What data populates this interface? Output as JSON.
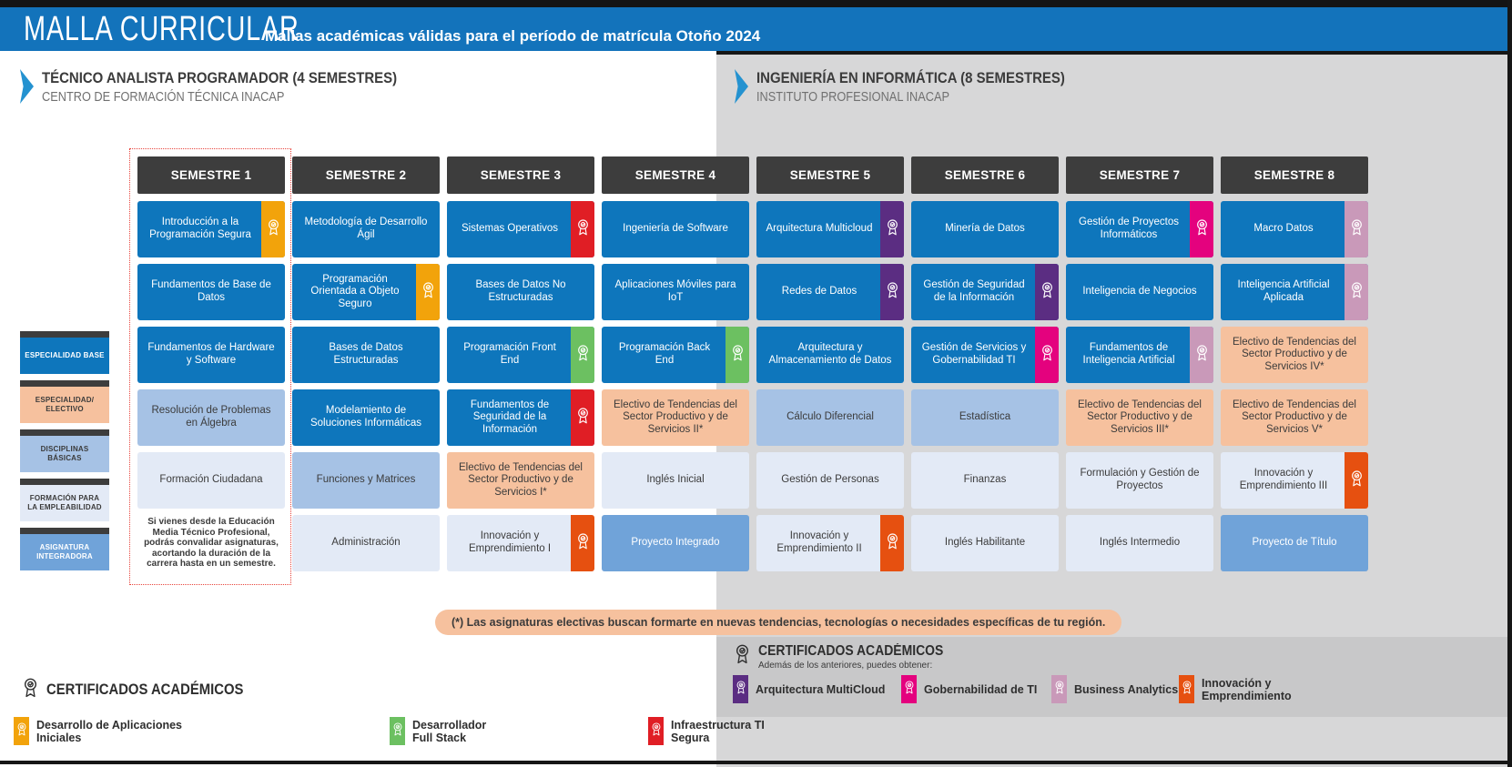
{
  "header": {
    "title": "MALLA CURRICULAR",
    "subtitle": "Mallas académicas válidas para el período de matrícula Otoño 2024"
  },
  "programs": [
    {
      "title": "TÉCNICO ANALISTA PROGRAMADOR (4 SEMESTRES)",
      "subtitle": "CENTRO DE FORMACIÓN TÉCNICA INACAP"
    },
    {
      "title": "INGENIERÍA EN INFORMÁTICA (8 SEMESTRES)",
      "subtitle": "INSTITUTO PROFESIONAL INACAP"
    }
  ],
  "legend": [
    {
      "label": "ESPECIALIDAD BASE",
      "category": "especialidad"
    },
    {
      "label": "ESPECIALIDAD/ ELECTIVO",
      "category": "electivo"
    },
    {
      "label": "DISCIPLINAS BÁSICAS",
      "category": "disciplinas"
    },
    {
      "label": "FORMACIÓN PARA LA EMPLEABILIDAD",
      "category": "empleabilidad"
    },
    {
      "label": "ASIGNATURA INTEGRADORA",
      "category": "integradora"
    }
  ],
  "semesters": [
    {
      "name": "SEMESTRE 1",
      "highlight": true,
      "courses": [
        {
          "name": "Introducción a la Programación Segura",
          "category": "especialidad",
          "badge": "orange"
        },
        {
          "name": "Fundamentos de Base de Datos",
          "category": "especialidad"
        },
        {
          "name": "Fundamentos de Hardware y Software",
          "category": "especialidad"
        },
        {
          "name": "Resolución de Problemas en Álgebra",
          "category": "disciplinas"
        },
        {
          "name": "Formación Ciudadana",
          "category": "empleabilidad"
        }
      ],
      "note": "Si vienes desde la Educación Media Técnico Profesional, podrás convalidar asignaturas, acortando la duración de la carrera hasta en un semestre."
    },
    {
      "name": "SEMESTRE 2",
      "courses": [
        {
          "name": "Metodología de Desarrollo Ágil",
          "category": "especialidad"
        },
        {
          "name": "Programación Orientada a Objeto Seguro",
          "category": "especialidad",
          "badge": "orange"
        },
        {
          "name": "Bases de Datos Estructuradas",
          "category": "especialidad"
        },
        {
          "name": "Modelamiento de Soluciones Informáticas",
          "category": "especialidad"
        },
        {
          "name": "Funciones y Matrices",
          "category": "disciplinas"
        },
        {
          "name": "Administración",
          "category": "empleabilidad"
        }
      ]
    },
    {
      "name": "SEMESTRE 3",
      "courses": [
        {
          "name": "Sistemas Operativos",
          "category": "especialidad",
          "badge": "red"
        },
        {
          "name": "Bases de Datos No Estructuradas",
          "category": "especialidad"
        },
        {
          "name": "Programación Front End",
          "category": "especialidad",
          "badge": "green"
        },
        {
          "name": "Fundamentos de Seguridad de la Información",
          "category": "especialidad",
          "badge": "red"
        },
        {
          "name": "Electivo de Tendencias del Sector Productivo y de Servicios I*",
          "category": "electivo"
        },
        {
          "name": "Innovación y Emprendimiento I",
          "category": "empleabilidad",
          "badge": "orangered"
        }
      ]
    },
    {
      "name": "SEMESTRE 4",
      "courses": [
        {
          "name": "Ingeniería de Software",
          "category": "especialidad"
        },
        {
          "name": "Aplicaciones Móviles para IoT",
          "category": "especialidad"
        },
        {
          "name": "Programación Back End",
          "category": "especialidad",
          "badge": "green"
        },
        {
          "name": "Electivo de Tendencias del Sector Productivo y de Servicios II*",
          "category": "electivo"
        },
        {
          "name": "Inglés Inicial",
          "category": "empleabilidad"
        },
        {
          "name": "Proyecto Integrado",
          "category": "integradora"
        }
      ]
    },
    {
      "name": "SEMESTRE 5",
      "courses": [
        {
          "name": "Arquitectura Multicloud",
          "category": "especialidad",
          "badge": "purple"
        },
        {
          "name": "Redes de Datos",
          "category": "especialidad",
          "badge": "purple"
        },
        {
          "name": "Arquitectura y Almacenamiento de Datos",
          "category": "especialidad"
        },
        {
          "name": "Cálculo Diferencial",
          "category": "disciplinas"
        },
        {
          "name": "Gestión de Personas",
          "category": "empleabilidad"
        },
        {
          "name": "Innovación y Emprendimiento II",
          "category": "empleabilidad",
          "badge": "orangered"
        }
      ]
    },
    {
      "name": "SEMESTRE 6",
      "courses": [
        {
          "name": "Minería de Datos",
          "category": "especialidad"
        },
        {
          "name": "Gestión de Seguridad de la Información",
          "category": "especialidad",
          "badge": "purple"
        },
        {
          "name": "Gestión de Servicios y Gobernabilidad TI",
          "category": "especialidad",
          "badge": "pink"
        },
        {
          "name": "Estadística",
          "category": "disciplinas"
        },
        {
          "name": "Finanzas",
          "category": "empleabilidad"
        },
        {
          "name": "Inglés Habilitante",
          "category": "empleabilidad"
        }
      ]
    },
    {
      "name": "SEMESTRE 7",
      "courses": [
        {
          "name": "Gestión de Proyectos Informáticos",
          "category": "especialidad",
          "badge": "pink"
        },
        {
          "name": "Inteligencia de Negocios",
          "category": "especialidad"
        },
        {
          "name": "Fundamentos de Inteligencia Artificial",
          "category": "especialidad",
          "badge": "mauve"
        },
        {
          "name": "Electivo de Tendencias del Sector Productivo y de Servicios III*",
          "category": "electivo"
        },
        {
          "name": "Formulación y Gestión de Proyectos",
          "category": "empleabilidad"
        },
        {
          "name": "Inglés Intermedio",
          "category": "empleabilidad"
        }
      ]
    },
    {
      "name": "SEMESTRE 8",
      "courses": [
        {
          "name": "Macro Datos",
          "category": "especialidad",
          "badge": "mauve"
        },
        {
          "name": "Inteligencia Artificial Aplicada",
          "category": "especialidad",
          "badge": "mauve"
        },
        {
          "name": "Electivo de Tendencias del Sector Productivo y de Servicios IV*",
          "category": "electivo"
        },
        {
          "name": "Electivo de Tendencias del Sector Productivo y de Servicios V*",
          "category": "electivo"
        },
        {
          "name": "Innovación y Emprendimiento III",
          "category": "empleabilidad",
          "badge": "orangered"
        },
        {
          "name": "Proyecto de Título",
          "category": "integradora"
        }
      ]
    }
  ],
  "elective_note": "(*) Las asignaturas electivas buscan formarte en nuevas tendencias, tecnologías o necesidades específicas de tu región.",
  "certificates_left": {
    "title": "CERTIFICADOS ACADÉMICOS",
    "items": [
      {
        "label": "Desarrollo de Aplicaciones Iniciales",
        "color_key": "orange"
      },
      {
        "label": "Desarrollador Full Stack",
        "color_key": "green"
      },
      {
        "label": "Infraestructura TI Segura",
        "color_key": "red"
      }
    ]
  },
  "certificates_right": {
    "title": "CERTIFICADOS ACADÉMICOS",
    "subtitle": "Además de los anteriores, puedes obtener:",
    "items": [
      {
        "label": "Arquitectura MultiCloud",
        "color_key": "purple"
      },
      {
        "label": "Gobernabilidad de TI",
        "color_key": "pink"
      },
      {
        "label": "Business Analytics",
        "color_key": "mauve"
      },
      {
        "label": "Innovación y Emprendimiento",
        "color_key": "orangered"
      }
    ]
  },
  "colors": {
    "header_blue": "#1373bb",
    "arrow_blue": "#2492d0",
    "dark_bar": "#3d3d3d",
    "card_blue": "#0e76bc",
    "card_peach": "#f6c19e",
    "card_light_blue": "#a6c2e5",
    "card_pale_blue": "#e3eaf6",
    "card_medium_blue": "#70a3d9",
    "badges": {
      "orange": "#f2a30b",
      "green": "#6cc061",
      "red": "#e01e25",
      "purple": "#5b2d82",
      "pink": "#e4027e",
      "mauve": "#c999b9",
      "orangered": "#e65010"
    }
  }
}
